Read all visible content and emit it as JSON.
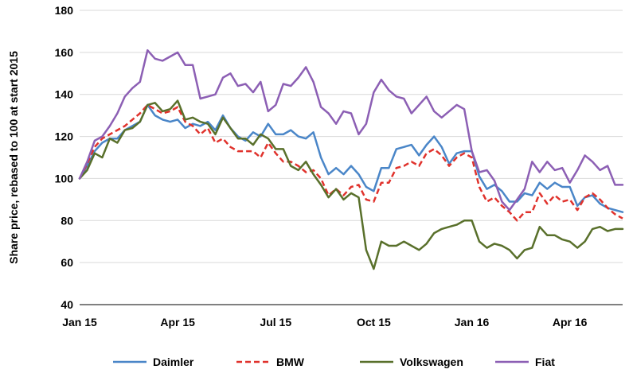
{
  "chart_data": {
    "type": "line",
    "ylabel": "Share price, rebased to 100 at start 2015",
    "ylim": [
      40,
      180
    ],
    "yticks": [
      40,
      60,
      80,
      100,
      120,
      140,
      160,
      180
    ],
    "xticks": [
      {
        "label": "Jan 15",
        "week": 0
      },
      {
        "label": "Apr 15",
        "week": 13
      },
      {
        "label": "Jul 15",
        "week": 26
      },
      {
        "label": "Oct 15",
        "week": 39
      },
      {
        "label": "Jan 16",
        "week": 52
      },
      {
        "label": "Apr 16",
        "week": 65
      }
    ],
    "x_range_weeks": [
      0,
      72
    ],
    "grid": "horizontal",
    "legend_position": "bottom",
    "series": [
      {
        "name": "Daimler",
        "color": "#4a86c8",
        "dash": "solid",
        "values": [
          100,
          106,
          113,
          117,
          119,
          119,
          123,
          125,
          127,
          135,
          130,
          128,
          127,
          128,
          124,
          126,
          125,
          127,
          123,
          130,
          124,
          120,
          118,
          122,
          120,
          126,
          121,
          121,
          123,
          120,
          119,
          122,
          110,
          102,
          105,
          102,
          106,
          102,
          96,
          94,
          105,
          105,
          114,
          115,
          116,
          111,
          116,
          120,
          115,
          107,
          112,
          113,
          113,
          101,
          95,
          97,
          94,
          89,
          89,
          93,
          92,
          98,
          95,
          98,
          96,
          96,
          87,
          91,
          92,
          88,
          86,
          85,
          84
        ]
      },
      {
        "name": "BMW",
        "color": "#e0322c",
        "dash": "dashed",
        "values": [
          100,
          107,
          115,
          119,
          121,
          123,
          125,
          128,
          131,
          135,
          133,
          131,
          132,
          134,
          127,
          125,
          121,
          124,
          117,
          119,
          115,
          113,
          113,
          113,
          110,
          117,
          112,
          108,
          108,
          106,
          103,
          104,
          100,
          92,
          95,
          92,
          96,
          97,
          90,
          89,
          98,
          98,
          105,
          106,
          108,
          106,
          112,
          114,
          111,
          106,
          110,
          112,
          110,
          96,
          89,
          91,
          87,
          84,
          80,
          84,
          84,
          93,
          88,
          92,
          89,
          90,
          85,
          91,
          93,
          90,
          86,
          83,
          81
        ]
      },
      {
        "name": "Volkswagen",
        "color": "#59702b",
        "dash": "solid",
        "values": [
          100,
          104,
          112,
          110,
          119,
          117,
          123,
          124,
          127,
          135,
          136,
          132,
          133,
          137,
          128,
          129,
          127,
          126,
          121,
          129,
          124,
          119,
          119,
          116,
          121,
          119,
          114,
          114,
          106,
          104,
          108,
          102,
          97,
          91,
          95,
          90,
          93,
          91,
          66,
          57,
          70,
          68,
          68,
          70,
          68,
          66,
          69,
          74,
          76,
          77,
          78,
          80,
          80,
          70,
          67,
          69,
          68,
          66,
          62,
          66,
          67,
          77,
          73,
          73,
          71,
          70,
          67,
          70,
          76,
          77,
          75,
          76,
          76
        ]
      },
      {
        "name": "Fiat",
        "color": "#8c5fb4",
        "dash": "solid",
        "values": [
          100,
          108,
          118,
          120,
          125,
          131,
          139,
          143,
          146,
          161,
          157,
          156,
          158,
          160,
          154,
          154,
          138,
          139,
          140,
          148,
          150,
          144,
          145,
          141,
          146,
          132,
          135,
          145,
          144,
          148,
          153,
          146,
          134,
          131,
          126,
          132,
          131,
          121,
          126,
          141,
          147,
          142,
          139,
          138,
          131,
          135,
          139,
          132,
          129,
          132,
          135,
          133,
          113,
          103,
          104,
          99,
          89,
          85,
          90,
          95,
          108,
          103,
          108,
          104,
          105,
          98,
          104,
          111,
          108,
          104,
          106,
          97,
          97
        ]
      }
    ]
  }
}
